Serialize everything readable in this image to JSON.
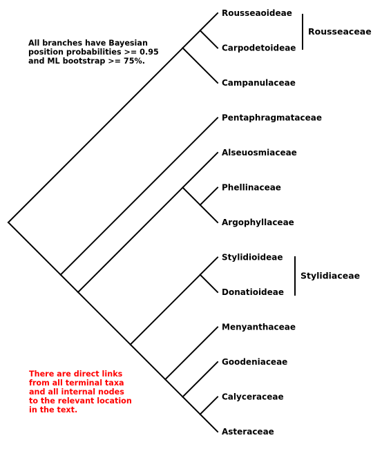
{
  "taxa": [
    "Rousseaoideae",
    "Carpodetoideae",
    "Campanulaceae",
    "Pentaphragmataceae",
    "Alseuosmiaceae",
    "Phellinaceae",
    "Argophyllaceae",
    "Stylidioideae",
    "Donatioideae",
    "Menyanthaceae",
    "Goodeniaceae",
    "Calyceraceae",
    "Asteraceae"
  ],
  "families": [
    {
      "label": "Rousseaceae",
      "members": [
        "Rousseaoideae",
        "Carpodetoideae"
      ]
    },
    {
      "label": "Stylidiaceae",
      "members": [
        "Stylidioideae",
        "Donatioideae"
      ]
    }
  ],
  "notes": {
    "support": "All branches have Bayesian\nposition probabilities >= 0.95\nand ML bootstrap >= 75%.",
    "links": "There are direct links\nfrom all terminal taxa\nand all internal nodes\nto the relevant location\nin the text."
  },
  "colors": {
    "lines": "#000000",
    "text": "#000000",
    "note_links": "#ff0000"
  }
}
